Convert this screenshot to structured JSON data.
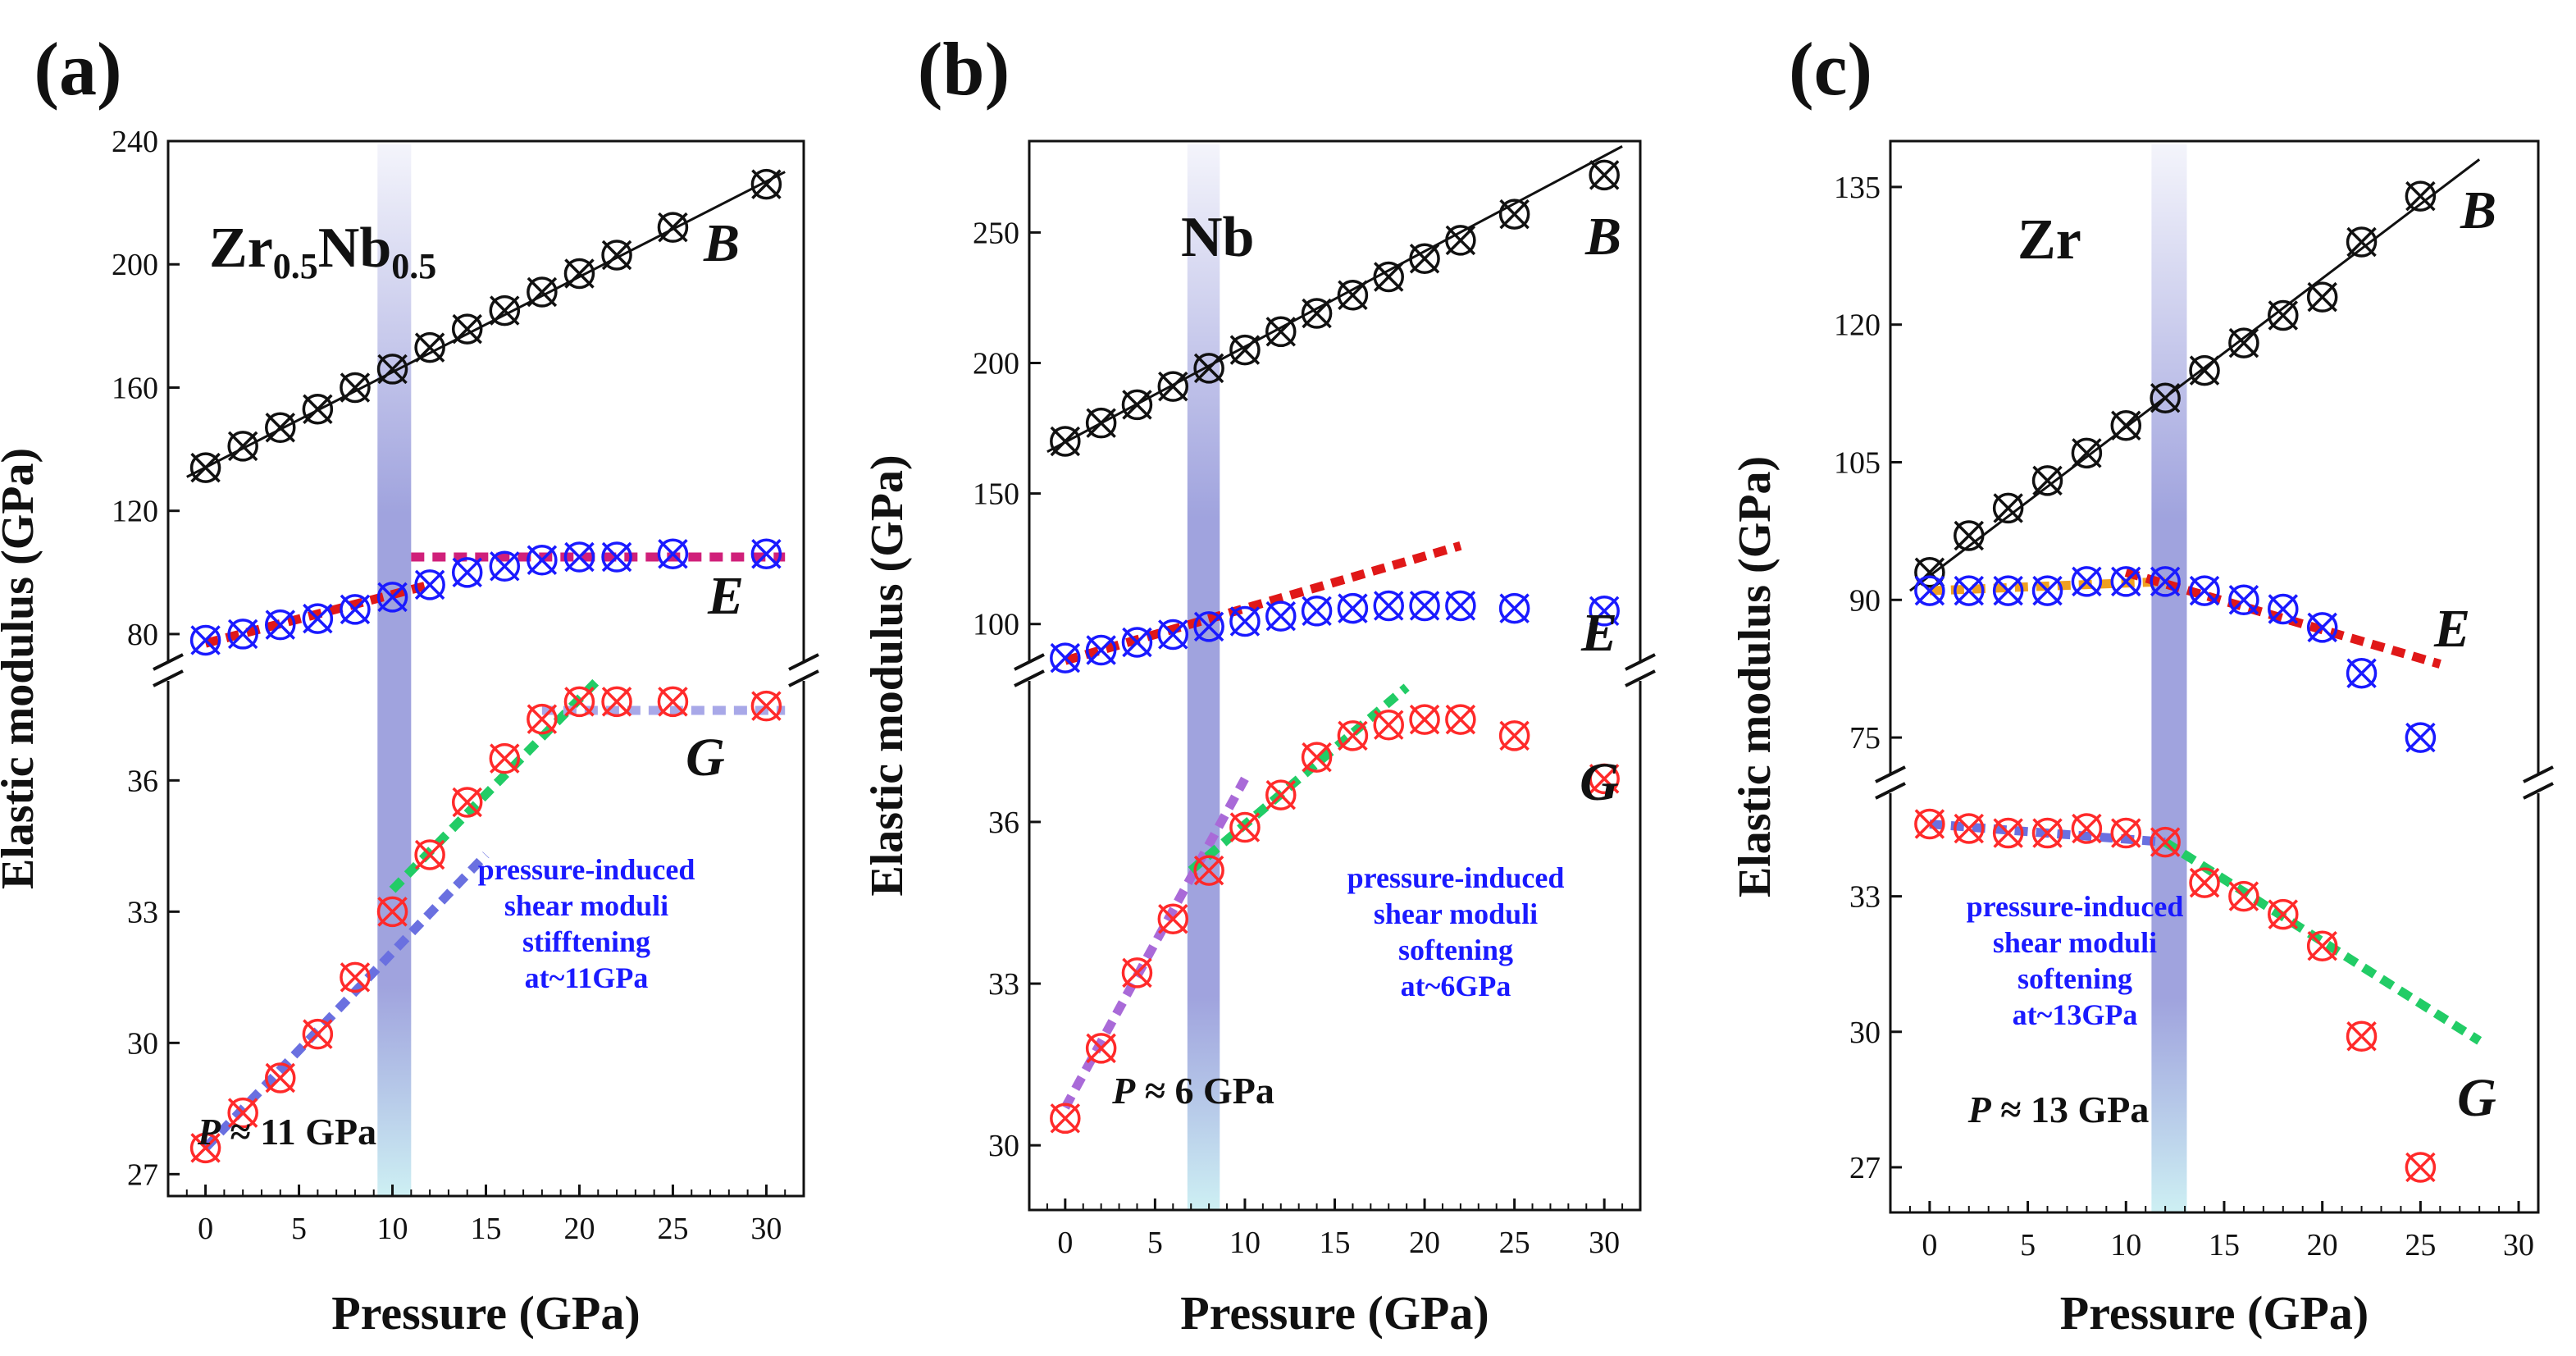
{
  "figure": {
    "colors": {
      "black": "#111111",
      "blue": "#1a1aff",
      "red": "#ff2a2a",
      "annotation": "#1a1aff",
      "band": "#8f93d8",
      "band_low": "#c8eef2",
      "green_dash": "#22cc66",
      "red_dash": "#e01818",
      "magenta_dash": "#d0207a",
      "lavender_dash": "#a8a8e8",
      "purple_dash": "#a96ad8",
      "orange_dash": "#f0a020",
      "blue_dash": "#6a70e0"
    },
    "panels": [
      {
        "label": "(a)",
        "material": {
          "base": "Zr",
          "sub1": "0.5",
          "mid": "Nb",
          "sub2": "0.5"
        },
        "ylabel": "Elastic modulus (GPa)",
        "xlabel": "Pressure (GPa)",
        "annotation": [
          "pressure-induced",
          "shear moduli",
          "stifftening",
          "at~11GPa"
        ],
        "pressure_label": {
          "symbol": "P",
          "text": "≈ 11 GPa"
        },
        "series_labels": {
          "B": "B",
          "E": "E",
          "G": "G"
        },
        "xticks": [
          "0",
          "5",
          "10",
          "15",
          "20",
          "25",
          "30"
        ],
        "upper_yticks": [
          "80",
          "120",
          "160",
          "200",
          "240"
        ],
        "lower_yticks": [
          "27",
          "30",
          "33",
          "36"
        ]
      },
      {
        "label": "(b)",
        "material": {
          "base": "Nb",
          "sub1": "",
          "mid": "",
          "sub2": ""
        },
        "ylabel": "Elastic modulus (GPa)",
        "xlabel": "Pressure (GPa)",
        "annotation": [
          "pressure-induced",
          "shear moduli",
          "softening",
          "at~6GPa"
        ],
        "pressure_label": {
          "symbol": "P",
          "text": "≈ 6 GPa"
        },
        "series_labels": {
          "B": "B",
          "E": "E",
          "G": "G"
        },
        "xticks": [
          "0",
          "5",
          "10",
          "15",
          "20",
          "25",
          "30"
        ],
        "upper_yticks": [
          "100",
          "150",
          "200",
          "250"
        ],
        "lower_yticks": [
          "30",
          "33",
          "36"
        ]
      },
      {
        "label": "(c)",
        "material": {
          "base": "Zr",
          "sub1": "",
          "mid": "",
          "sub2": ""
        },
        "ylabel": "Elastic modulus (GPa)",
        "xlabel": "Pressure (GPa)",
        "annotation": [
          "pressure-induced",
          "shear moduli",
          "softening",
          "at~13GPa"
        ],
        "pressure_label": {
          "symbol": "P",
          "text": "≈ 13 GPa"
        },
        "series_labels": {
          "B": "B",
          "E": "E",
          "G": "G"
        },
        "xticks": [
          "0",
          "5",
          "10",
          "15",
          "20",
          "25",
          "30"
        ],
        "upper_yticks": [
          "75",
          "90",
          "105",
          "120",
          "135"
        ],
        "lower_yticks": [
          "27",
          "30",
          "33"
        ]
      }
    ]
  },
  "chart_data": [
    {
      "type": "scatter",
      "panel": "(a)",
      "xlabel": "Pressure (GPa)",
      "ylabel": "Elastic modulus (GPa)",
      "xlim": [
        -2,
        32
      ],
      "broken_y_axis": {
        "upper_range": [
          68,
          240
        ],
        "lower_range": [
          26.5,
          38.5
        ]
      },
      "highlight_band_pressure": [
        9.2,
        11.0
      ],
      "transition_pressure": 11,
      "series": [
        {
          "name": "B",
          "color": "#111111",
          "segment": "upper",
          "x": [
            0,
            2,
            4,
            6,
            8,
            10,
            12,
            14,
            16,
            18,
            20,
            22,
            25,
            30
          ],
          "y": [
            134,
            141,
            147,
            153,
            160,
            166,
            173,
            179,
            185,
            191,
            197,
            203,
            212,
            226
          ]
        },
        {
          "name": "E",
          "color": "#1a1aff",
          "segment": "upper",
          "x": [
            0,
            2,
            4,
            6,
            8,
            10,
            12,
            14,
            16,
            18,
            20,
            22,
            25,
            30
          ],
          "y": [
            78,
            80,
            83,
            85,
            88,
            92,
            96,
            100,
            102,
            104,
            105,
            105,
            106,
            106
          ]
        },
        {
          "name": "G",
          "color": "#ff2a2a",
          "segment": "lower",
          "x": [
            0,
            2,
            4,
            6,
            8,
            10,
            12,
            14,
            16,
            18,
            20,
            22,
            25,
            30
          ],
          "y": [
            27.6,
            28.4,
            29.2,
            30.2,
            31.5,
            33.0,
            34.3,
            35.5,
            36.5,
            37.4,
            37.8,
            37.8,
            37.8,
            37.7
          ]
        }
      ],
      "guides": [
        {
          "style": "solid",
          "color": "#111111",
          "segment": "upper",
          "x": [
            -1,
            31
          ],
          "y": [
            131,
            230
          ]
        },
        {
          "style": "dotted",
          "color": "#e01818",
          "segment": "upper",
          "x": [
            0,
            12
          ],
          "y": [
            77,
            96
          ]
        },
        {
          "style": "dotted",
          "color": "#d0207a",
          "segment": "upper",
          "x": [
            11,
            31
          ],
          "y": [
            105,
            105
          ]
        },
        {
          "style": "dotted",
          "color": "#6a70e0",
          "segment": "lower",
          "x": [
            0,
            15
          ],
          "y": [
            27.6,
            34.3
          ]
        },
        {
          "style": "dotted",
          "color": "#22cc66",
          "segment": "lower",
          "x": [
            10,
            21
          ],
          "y": [
            33.5,
            38.3
          ]
        },
        {
          "style": "dotted",
          "color": "#a8a8e8",
          "segment": "lower",
          "x": [
            18,
            31
          ],
          "y": [
            37.6,
            37.6
          ]
        }
      ]
    },
    {
      "type": "scatter",
      "panel": "(b)",
      "xlabel": "Pressure (GPa)",
      "ylabel": "Elastic modulus (GPa)",
      "xlim": [
        -2,
        32
      ],
      "broken_y_axis": {
        "upper_range": [
          82,
          285
        ],
        "lower_range": [
          28.8,
          38.8
        ]
      },
      "highlight_band_pressure": [
        6.8,
        8.6
      ],
      "transition_pressure": 6,
      "series": [
        {
          "name": "B",
          "color": "#111111",
          "segment": "upper",
          "x": [
            0,
            2,
            4,
            6,
            8,
            10,
            12,
            14,
            16,
            18,
            20,
            22,
            25,
            30
          ],
          "y": [
            170,
            177,
            184,
            191,
            198,
            205,
            212,
            219,
            226,
            233,
            240,
            247,
            257,
            272
          ]
        },
        {
          "name": "E",
          "color": "#1a1aff",
          "segment": "upper",
          "x": [
            0,
            2,
            4,
            6,
            8,
            10,
            12,
            14,
            16,
            18,
            20,
            22,
            25,
            30
          ],
          "y": [
            87,
            90,
            93,
            96,
            99,
            101,
            103,
            105,
            106,
            107,
            107,
            107,
            106,
            105
          ]
        },
        {
          "name": "G",
          "color": "#ff2a2a",
          "segment": "lower",
          "x": [
            0,
            2,
            4,
            6,
            8,
            10,
            12,
            14,
            16,
            18,
            20,
            22,
            25,
            30
          ],
          "y": [
            30.5,
            31.8,
            33.2,
            34.2,
            35.1,
            35.9,
            36.5,
            37.2,
            37.6,
            37.8,
            37.9,
            37.9,
            37.6,
            36.8
          ]
        }
      ],
      "guides": [
        {
          "style": "solid",
          "color": "#111111",
          "segment": "upper",
          "x": [
            -1,
            31
          ],
          "y": [
            166,
            283
          ]
        },
        {
          "style": "dotted",
          "color": "#e01818",
          "segment": "upper",
          "x": [
            0,
            22
          ],
          "y": [
            86,
            130
          ]
        },
        {
          "style": "dotted",
          "color": "#a96ad8",
          "segment": "lower",
          "x": [
            0,
            10
          ],
          "y": [
            30.7,
            36.8
          ]
        },
        {
          "style": "dotted",
          "color": "#22cc66",
          "segment": "lower",
          "x": [
            7,
            19
          ],
          "y": [
            35.1,
            38.5
          ]
        }
      ]
    },
    {
      "type": "scatter",
      "panel": "(c)",
      "xlabel": "Pressure (GPa)",
      "ylabel": "Elastic modulus (GPa)",
      "xlim": [
        -2,
        31
      ],
      "broken_y_axis": {
        "upper_range": [
          70,
          140
        ],
        "lower_range": [
          26,
          35.5
        ]
      },
      "highlight_band_pressure": [
        11.3,
        13.1
      ],
      "transition_pressure": 13,
      "series": [
        {
          "name": "B",
          "color": "#111111",
          "segment": "upper",
          "x": [
            0,
            2,
            4,
            6,
            8,
            10,
            12,
            14,
            16,
            18,
            20,
            22,
            25
          ],
          "y": [
            93,
            97,
            100,
            103,
            106,
            109,
            112,
            115,
            118,
            121,
            123,
            129,
            134
          ]
        },
        {
          "name": "E",
          "color": "#1a1aff",
          "segment": "upper",
          "x": [
            0,
            2,
            4,
            6,
            8,
            10,
            12,
            14,
            16,
            18,
            20,
            22,
            25
          ],
          "y": [
            91,
            91,
            91,
            91,
            92,
            92,
            92,
            91,
            90,
            89,
            87,
            82,
            75
          ]
        },
        {
          "name": "G",
          "color": "#ff2a2a",
          "segment": "lower",
          "x": [
            0,
            2,
            4,
            6,
            8,
            10,
            12,
            14,
            16,
            18,
            20,
            22,
            25
          ],
          "y": [
            34.6,
            34.5,
            34.4,
            34.4,
            34.5,
            34.4,
            34.2,
            33.3,
            33.0,
            32.6,
            31.9,
            29.9,
            27.0
          ]
        }
      ],
      "guides": [
        {
          "style": "solid",
          "color": "#111111",
          "segment": "upper",
          "x": [
            -1,
            28
          ],
          "y": [
            91,
            138
          ]
        },
        {
          "style": "dotted",
          "color": "#f0a020",
          "segment": "upper",
          "x": [
            0,
            12
          ],
          "y": [
            91,
            92
          ]
        },
        {
          "style": "dotted",
          "color": "#e01818",
          "segment": "upper",
          "x": [
            10,
            26
          ],
          "y": [
            93,
            83
          ]
        },
        {
          "style": "dotted",
          "color": "#6a70e0",
          "segment": "lower",
          "x": [
            0,
            12
          ],
          "y": [
            34.6,
            34.2
          ]
        },
        {
          "style": "dotted",
          "color": "#22cc66",
          "segment": "lower",
          "x": [
            12,
            28
          ],
          "y": [
            34.2,
            29.8
          ]
        }
      ]
    }
  ]
}
